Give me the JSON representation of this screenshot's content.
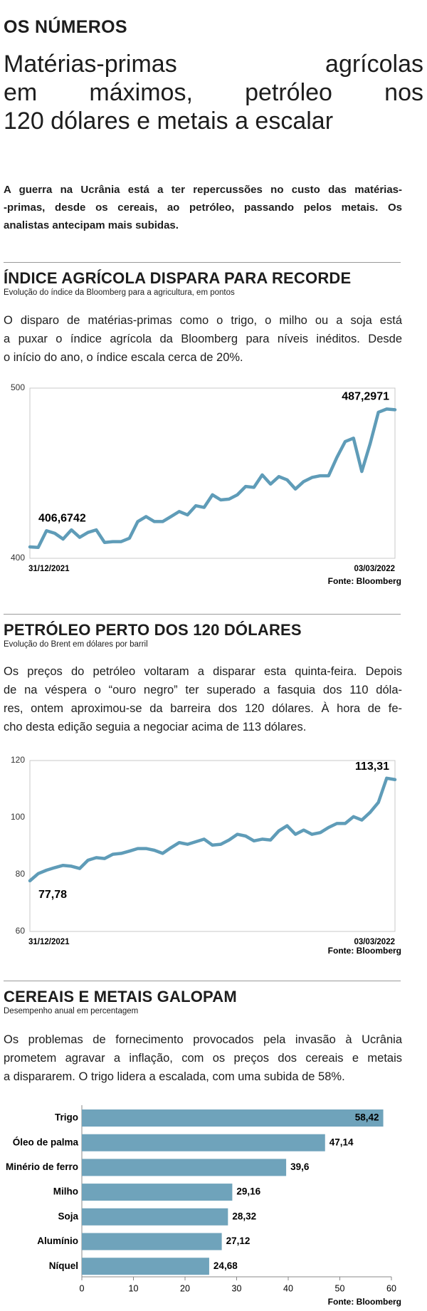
{
  "header": {
    "kicker": "OS NÚMEROS",
    "title": [
      "Matérias-primas agrícolas",
      "em máximos, petróleo nos",
      "120 dólares e metais a escalar"
    ],
    "lead": [
      "A guerra na Ucrânia está a ter repercussões no custo das matérias-",
      "-primas, desde os cereais, ao petróleo, passando pelos metais. Os",
      "analistas antecipam mais subidas."
    ]
  },
  "sections": [
    {
      "title": "ÍNDICE AGRÍCOLA DISPARA PARA RECORDE",
      "subtitle": "Evolução do índice da Bloomberg para a agricultura, em pontos",
      "text": [
        "O disparo de matérias-primas como o trigo, o milho ou a soja está",
        "a puxar o índice agrícola da Bloomberg para níveis inéditos. Desde",
        "o início do ano, o índice escala cerca de 20%."
      ]
    },
    {
      "title": "PETRÓLEO PERTO DOS 120 DÓLARES",
      "subtitle": "Evolução do Brent em dólares por barril",
      "text": [
        "Os preços do petróleo voltaram a disparar esta quinta-feira. Depois",
        "de na véspera o “ouro negro” ter superado a fasquia dos 110 dóla-",
        "res, ontem aproximou-se da barreira dos 120 dólares. À hora de fe-",
        "cho desta edição seguia a negociar acima de 113 dólares."
      ]
    },
    {
      "title": "CEREAIS E METAIS GALOPAM",
      "subtitle": "Desempenho anual em percentagem",
      "text": [
        "Os problemas de fornecimento provocados pela invasão à Ucrânia",
        "prometem agravar a inflação, com os preços dos cereais e metais",
        "a dispararem. O trigo lidera a escalada, com uma subida de 58%."
      ]
    }
  ],
  "chart_data": [
    {
      "type": "line",
      "color": "#5f9cb8",
      "source": "Fonte: Bloomberg",
      "categories": [
        "31/12/2021",
        null,
        null,
        null,
        null,
        null,
        null,
        null,
        null,
        null,
        null,
        null,
        null,
        null,
        null,
        null,
        null,
        null,
        null,
        null,
        null,
        null,
        null,
        null,
        null,
        null,
        null,
        null,
        null,
        null,
        null,
        null,
        null,
        null,
        null,
        null,
        null,
        null,
        null,
        null,
        null,
        null,
        null,
        null,
        "03/03/2022"
      ],
      "values": [
        406.6742,
        406.4,
        416.2,
        414.7,
        411.3,
        416.7,
        412.3,
        415.2,
        416.7,
        409.3,
        409.8,
        409.8,
        411.8,
        421.6,
        424.5,
        421.6,
        421.6,
        424.5,
        427.5,
        425.5,
        430.9,
        429.9,
        437.3,
        434.3,
        434.8,
        437.3,
        442.2,
        441.7,
        449.0,
        443.6,
        448.0,
        446.1,
        440.7,
        445.1,
        447.5,
        448.5,
        448.5,
        459.3,
        468.6,
        470.6,
        451.0,
        467.2,
        485.8,
        487.7,
        487.2971
      ],
      "value_labels": [
        "406,6742",
        null,
        null,
        null,
        null,
        null,
        null,
        null,
        null,
        null,
        null,
        null,
        null,
        null,
        null,
        null,
        null,
        null,
        null,
        null,
        null,
        null,
        null,
        null,
        null,
        null,
        null,
        null,
        null,
        null,
        null,
        null,
        null,
        null,
        null,
        null,
        null,
        null,
        null,
        null,
        null,
        null,
        null,
        null,
        "487,2971"
      ],
      "ylim": [
        400,
        500
      ],
      "yticks": [
        400,
        500
      ],
      "grid": false
    },
    {
      "type": "line",
      "color": "#5f9cb8",
      "source": "Fonte: Bloomberg",
      "categories": [
        "31/12/2021",
        null,
        null,
        null,
        null,
        null,
        null,
        null,
        null,
        null,
        null,
        null,
        null,
        null,
        null,
        null,
        null,
        null,
        null,
        null,
        null,
        null,
        null,
        null,
        null,
        null,
        null,
        null,
        null,
        null,
        null,
        null,
        null,
        null,
        null,
        null,
        null,
        null,
        null,
        null,
        null,
        null,
        null,
        null,
        "03/03/2022"
      ],
      "values": [
        77.78,
        80.3,
        81.5,
        82.4,
        83.2,
        82.9,
        82.1,
        85.0,
        85.9,
        85.6,
        87.1,
        87.4,
        88.2,
        89.1,
        89.1,
        88.5,
        87.4,
        89.4,
        91.2,
        90.6,
        91.5,
        92.4,
        90.3,
        90.6,
        92.1,
        94.1,
        93.5,
        91.8,
        92.4,
        92.1,
        95.3,
        97.1,
        94.1,
        95.6,
        94.1,
        94.7,
        96.5,
        97.9,
        97.9,
        100.3,
        99.1,
        101.8,
        105.3,
        113.8,
        113.31
      ],
      "value_labels": [
        "77,78",
        null,
        null,
        null,
        null,
        null,
        null,
        null,
        null,
        null,
        null,
        null,
        null,
        null,
        null,
        null,
        null,
        null,
        null,
        null,
        null,
        null,
        null,
        null,
        null,
        null,
        null,
        null,
        null,
        null,
        null,
        null,
        null,
        null,
        null,
        null,
        null,
        null,
        null,
        null,
        null,
        null,
        null,
        null,
        "113,31"
      ],
      "ylim": [
        60,
        120
      ],
      "yticks": [
        60,
        80,
        100,
        120
      ],
      "grid": false
    },
    {
      "type": "hbar",
      "color": "#6fa3bb",
      "source": "Fonte: Bloomberg",
      "categories": [
        "Trigo",
        "Óleo de palma",
        "Minério de ferro",
        "Milho",
        "Soja",
        "Alumínio",
        "Níquel"
      ],
      "values": [
        58.42,
        47.14,
        39.6,
        29.16,
        28.32,
        27.12,
        24.68
      ],
      "value_labels": [
        "58,42",
        "47,14",
        "39,6",
        "29,16",
        "28,32",
        "27,12",
        "24,68"
      ],
      "xlim": [
        0,
        60
      ],
      "xticks": [
        0,
        10,
        20,
        30,
        40,
        50,
        60
      ]
    }
  ]
}
